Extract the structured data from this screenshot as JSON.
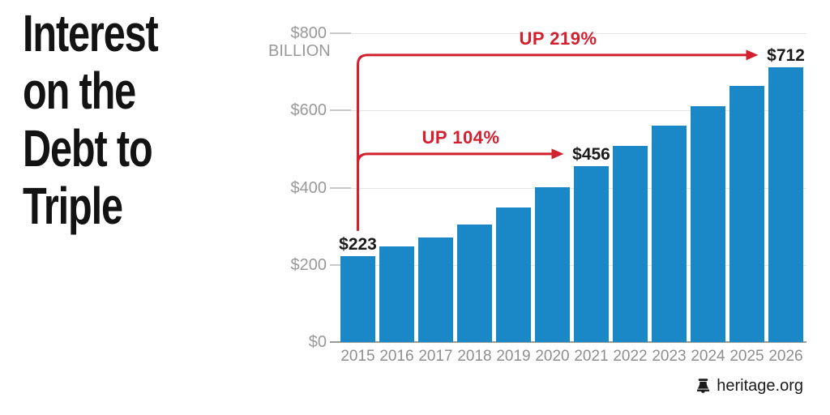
{
  "title": {
    "lines": [
      "Interest",
      "on the",
      "Debt to",
      "Triple"
    ]
  },
  "footer": {
    "source_label": "heritage.org",
    "icon": "liberty-bell-icon"
  },
  "chart_data": {
    "type": "bar",
    "categories": [
      "2015",
      "2016",
      "2017",
      "2018",
      "2019",
      "2020",
      "2021",
      "2022",
      "2023",
      "2024",
      "2025",
      "2026"
    ],
    "values": [
      223,
      248,
      270,
      304,
      349,
      402,
      456,
      508,
      560,
      612,
      663,
      712
    ],
    "ylim": [
      0,
      800
    ],
    "grid": true,
    "legend": "none",
    "unit": "BILLION",
    "yticks": [
      {
        "value": 0,
        "label": "$0"
      },
      {
        "value": 200,
        "label": "$200"
      },
      {
        "value": 400,
        "label": "$400"
      },
      {
        "value": 600,
        "label": "$600"
      },
      {
        "value": 800,
        "label": "$800",
        "label2": "BILLION"
      }
    ],
    "bar_color": "#1a87c7",
    "annotation_color": "#d2202f",
    "value_labels": [
      {
        "category": "2015",
        "text": "$223"
      },
      {
        "category": "2021",
        "text": "$456"
      },
      {
        "category": "2026",
        "text": "$712"
      }
    ],
    "annotations": [
      {
        "text": "UP 104%",
        "from_category": "2015",
        "to_category": "2021"
      },
      {
        "text": "UP 219%",
        "from_category": "2015",
        "to_category": "2026"
      }
    ]
  }
}
